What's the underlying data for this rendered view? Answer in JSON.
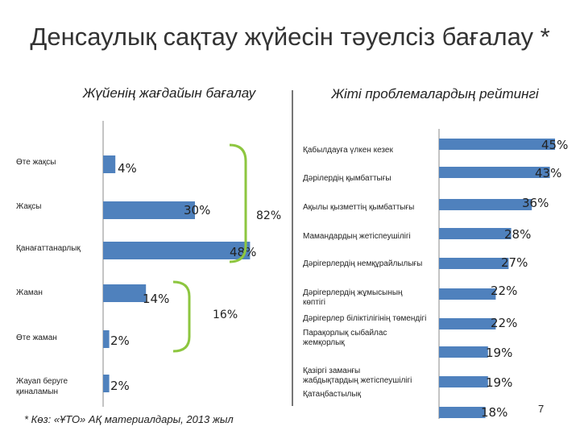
{
  "title": "Денсаулық сақтау жүйесін тәуелсіз бағалау *",
  "footnote": "* Көз: «ҰТО» АҚ материалдары, 2013 жыл",
  "page_number": "7",
  "colors": {
    "bar": "#4f81bd",
    "bracket": "#8dc63f",
    "axis": "#888888"
  },
  "chart_data": [
    {
      "type": "bar",
      "orientation": "horizontal",
      "title": "Жүйенің жағдайын бағалау",
      "categories": [
        "Өте жақсы",
        "Жақсы",
        "Қанағаттанарлық",
        "Жаман",
        "Өте жаман",
        "Жауап беруге қиналамын"
      ],
      "values": [
        4,
        30,
        48,
        14,
        2,
        2
      ],
      "value_labels": [
        "4%",
        "30%",
        "48%",
        "14%",
        "2%",
        "2%"
      ],
      "unit": "%",
      "annotations": [
        {
          "label": "82%",
          "groups": [
            "Өте жақсы",
            "Жақсы",
            "Қанағаттанарлық"
          ]
        },
        {
          "label": "16%",
          "groups": [
            "Жаман",
            "Өте жаман"
          ]
        }
      ]
    },
    {
      "type": "bar",
      "orientation": "horizontal",
      "title": "Жіті проблемалардың рейтингі",
      "categories": [
        "Қабылдауға үлкен кезек",
        "Дәрілердің қымбаттығы",
        "Ақылы қызметтің қымбаттығы",
        "Мамандардың жетіспеушілігі",
        "Дәрігерлердің немқұрайлылығы",
        "Дәрігерлердің жұмысының көптігі",
        "Дәрігерлер біліктілігінің төмендігі",
        "Парақорлық сыбайлас жемқорлық",
        "Қазіргі заманғы жабдықтардың жетіспеушілігі",
        "Қатаңбастылық"
      ],
      "values": [
        45,
        43,
        36,
        28,
        27,
        22,
        22,
        19,
        19,
        18
      ],
      "value_labels": [
        "45%",
        "43%",
        "36%",
        "28%",
        "27%",
        "22%",
        "22%",
        "19%",
        "19%",
        "18%"
      ],
      "unit": "%"
    }
  ]
}
